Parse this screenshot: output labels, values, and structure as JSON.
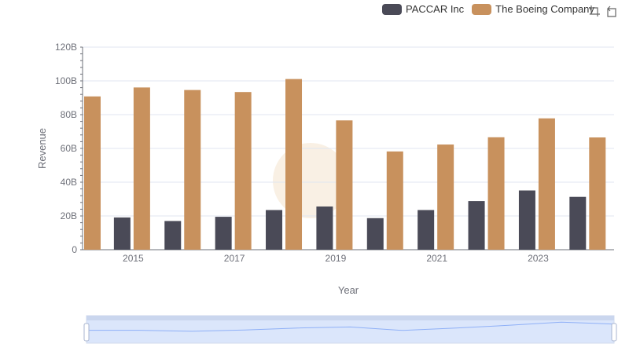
{
  "colors": {
    "paccar": "#4a4a57",
    "boeing": "#c8915d",
    "axis": "#6e7079",
    "grid": "#e0e6f1",
    "zoom_fill": "#dbe6fb",
    "zoom_border": "#d2dbee",
    "zoom_line": "#8fb0f7"
  },
  "legend": {
    "items": [
      "PACCAR Inc",
      "The Boeing Company"
    ]
  },
  "toolbox": {
    "icons": [
      "zoom-icon",
      "restore-icon"
    ]
  },
  "chart_data": {
    "type": "bar",
    "categories": [
      "2014",
      "2015",
      "2016",
      "2017",
      "2018",
      "2019",
      "2020",
      "2021",
      "2022",
      "2023",
      "2024"
    ],
    "x_tick_labels": [
      "2015",
      "2017",
      "2019",
      "2021",
      "2023"
    ],
    "series": [
      {
        "name": "PACCAR Inc",
        "values": [
          19.0,
          19.1,
          17.0,
          19.5,
          23.5,
          25.6,
          18.7,
          23.5,
          28.8,
          35.1,
          31.3
        ]
      },
      {
        "name": "The Boeing Company",
        "values": [
          90.8,
          96.1,
          94.6,
          93.4,
          101.1,
          76.6,
          58.2,
          62.3,
          66.6,
          77.8,
          66.5
        ]
      }
    ],
    "xlabel": "Year",
    "ylabel": "Revenue",
    "ylim": [
      0,
      120
    ],
    "y_ticks": [
      "0",
      "20B",
      "40B",
      "60B",
      "80B",
      "100B",
      "120B"
    ],
    "grid": true,
    "legend_position": "top-right",
    "data_zoom": {
      "type": "slider",
      "range": [
        0,
        100
      ]
    }
  }
}
